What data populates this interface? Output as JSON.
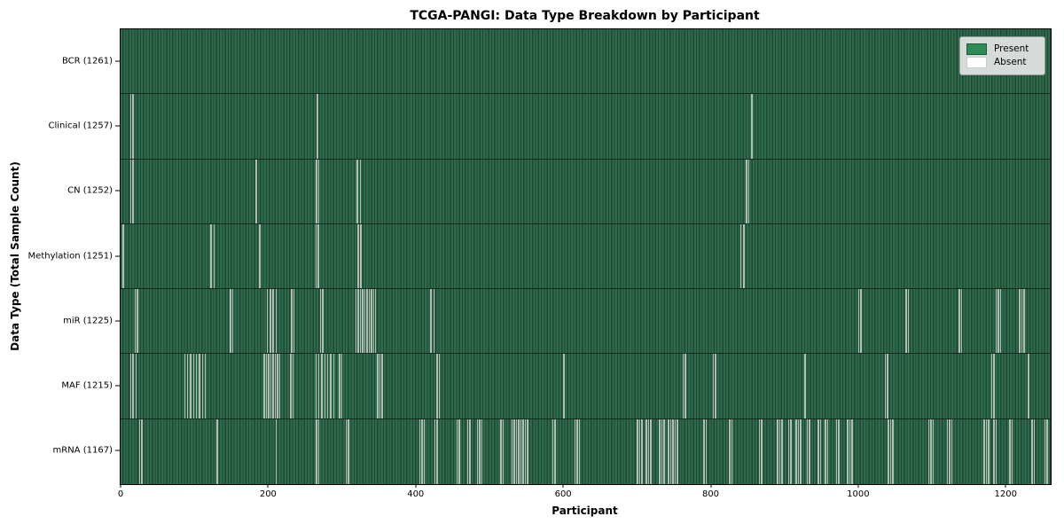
{
  "figure": {
    "title": "TCGA-PANGI: Data Type Breakdown by Participant",
    "xlabel": "Participant",
    "ylabel": "Data Type (Total Sample Count)"
  },
  "legend": {
    "position": "upper right",
    "items": [
      {
        "label": "Present",
        "color": "#2e8b57"
      },
      {
        "label": "Absent",
        "color": "#ffffff"
      }
    ]
  },
  "chart_data": {
    "type": "heatmap",
    "title": "TCGA-PANGI: Data Type Breakdown by Participant",
    "xlabel": "Participant",
    "ylabel": "Data Type (Total Sample Count)",
    "xlim": [
      0,
      1261
    ],
    "x_ticks": [
      0,
      200,
      400,
      600,
      800,
      1000,
      1200
    ],
    "grid": false,
    "legend_position": "upper right",
    "colors": {
      "present": "#2e8b57",
      "absent": "#ffffff",
      "cell_fill_light": "#2e6b4b",
      "cell_edge_dark": "#1f4834",
      "row_divider": "#12281b",
      "absent_stripe_render": "#b2bdb3"
    },
    "value_encoding": {
      "present": 1,
      "absent": 0
    },
    "rows": [
      {
        "data_type": "BCR",
        "label": "BCR (1261)",
        "total_samples": 1261,
        "absent_count": 0,
        "absent_participants": []
      },
      {
        "data_type": "Clinical",
        "label": "Clinical (1257)",
        "total_samples": 1257,
        "absent_count": 4,
        "absent_participants": [
          13,
          16,
          266,
          855
        ]
      },
      {
        "data_type": "CN",
        "label": "CN (1252)",
        "total_samples": 1252,
        "absent_count": 9,
        "absent_participants": [
          13,
          16,
          183,
          265,
          268,
          320,
          324,
          848,
          851
        ]
      },
      {
        "data_type": "Methylation",
        "label": "Methylation (1251)",
        "total_samples": 1251,
        "absent_count": 10,
        "absent_participants": [
          3,
          122,
          126,
          188,
          264,
          267,
          321,
          325,
          840,
          844
        ]
      },
      {
        "data_type": "miR",
        "label": "miR (1225)",
        "total_samples": 1225,
        "absent_count": 36,
        "absent_participants": [
          19,
          22,
          148,
          151,
          198,
          202,
          206,
          210,
          231,
          234,
          270,
          273,
          318,
          321,
          324,
          327,
          330,
          333,
          336,
          339,
          342,
          345,
          420,
          424,
          1000,
          1003,
          1064,
          1067,
          1136,
          1139,
          1186,
          1189,
          1192,
          1218,
          1221,
          1224
        ]
      },
      {
        "data_type": "MAF",
        "label": "MAF (1215)",
        "total_samples": 1215,
        "absent_count": 46,
        "absent_participants": [
          13,
          16,
          20,
          86,
          90,
          94,
          98,
          102,
          106,
          110,
          114,
          194,
          197,
          200,
          203,
          206,
          209,
          212,
          215,
          230,
          233,
          264,
          268,
          272,
          276,
          280,
          284,
          288,
          296,
          299,
          348,
          351,
          354,
          428,
          431,
          600,
          762,
          765,
          803,
          806,
          927,
          1036,
          1039,
          1180,
          1183,
          1230
        ]
      },
      {
        "data_type": "mRNA",
        "label": "mRNA (1167)",
        "total_samples": 1167,
        "absent_count": 94,
        "absent_participants": [
          25,
          28,
          130,
          210,
          265,
          268,
          305,
          308,
          405,
          408,
          411,
          425,
          428,
          455,
          458,
          470,
          473,
          483,
          486,
          489,
          515,
          518,
          530,
          533,
          536,
          539,
          542,
          545,
          548,
          551,
          585,
          588,
          615,
          618,
          621,
          700,
          703,
          706,
          712,
          715,
          718,
          730,
          733,
          736,
          742,
          745,
          748,
          751,
          754,
          790,
          793,
          825,
          828,
          865,
          868,
          890,
          893,
          896,
          905,
          908,
          915,
          918,
          921,
          930,
          933,
          945,
          948,
          955,
          958,
          970,
          973,
          985,
          988,
          991,
          1040,
          1043,
          1046,
          1095,
          1098,
          1101,
          1120,
          1123,
          1126,
          1170,
          1173,
          1176,
          1183,
          1186,
          1205,
          1208,
          1235,
          1238,
          1252,
          1255
        ]
      }
    ]
  }
}
